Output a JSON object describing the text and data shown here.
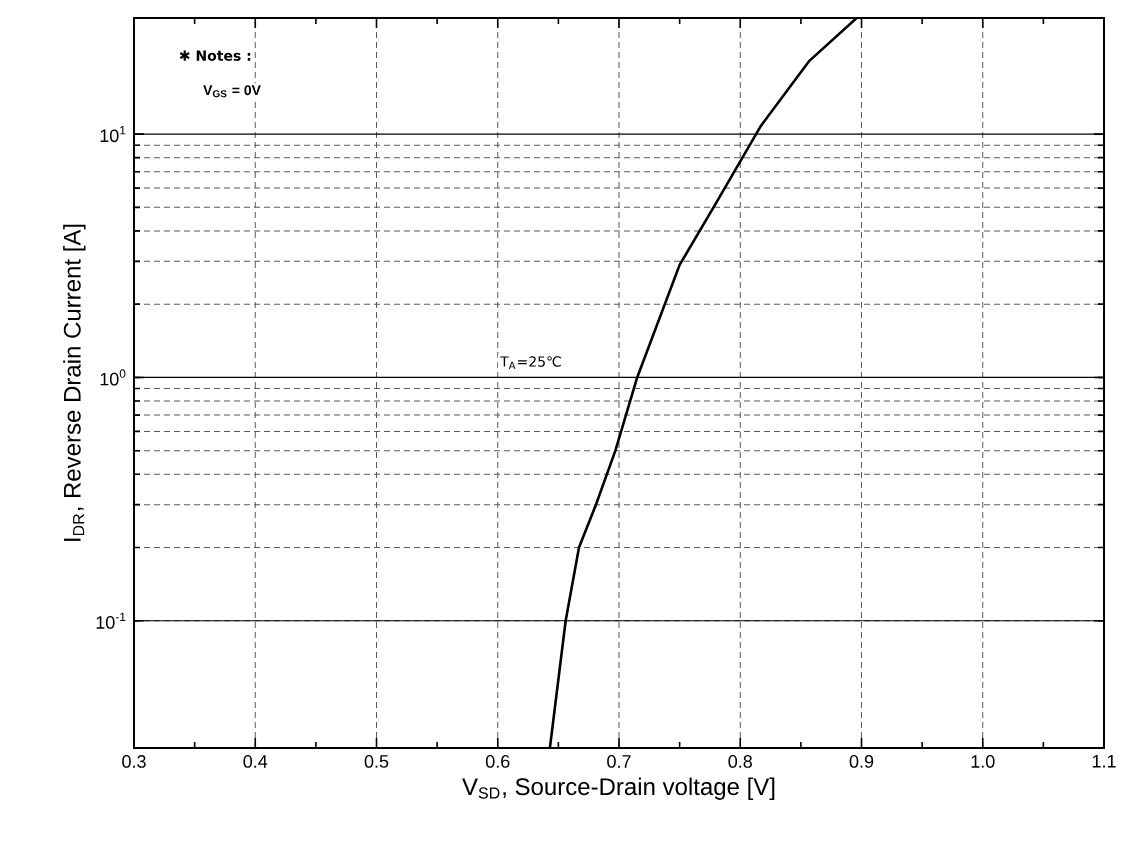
{
  "chart_data": {
    "type": "line",
    "xlabel": "V$_{SD}$, Source-Drain voltage [V]",
    "ylabel": "I$_{DR}$, Reverse Drain Current [A]",
    "annotations": [
      "✱ Notes :",
      "V$_{GS}$ = 0V",
      "T$_{A}$=25℃"
    ],
    "x": [
      0.643,
      0.656,
      0.667,
      0.681,
      0.697,
      0.715,
      0.75,
      0.78,
      0.817,
      0.857,
      0.896
    ],
    "series": [
      {
        "color": "#000000",
        "values": [
          0.03,
          0.1,
          0.2,
          0.3,
          0.5,
          1,
          2.9,
          5.2,
          10.8,
          20,
          30
        ]
      }
    ],
    "xlim": [
      0.3,
      1.1
    ],
    "xticks": [
      0.3,
      0.4,
      0.5,
      0.6,
      0.7,
      0.8,
      0.9,
      {
        "value": 1.0,
        "label": "1.0"
      },
      1.1
    ],
    "ylim": [
      0.03,
      30
    ],
    "yticks": [
      {
        "value": 0.1,
        "label": "10$^{-1}$"
      },
      {
        "value": 1,
        "label": "10$^{0}$"
      },
      {
        "value": 10,
        "label": "10$^{1}$"
      }
    ],
    "log": "y",
    "grid": true,
    "marker": "none",
    "line_style": "solid"
  }
}
